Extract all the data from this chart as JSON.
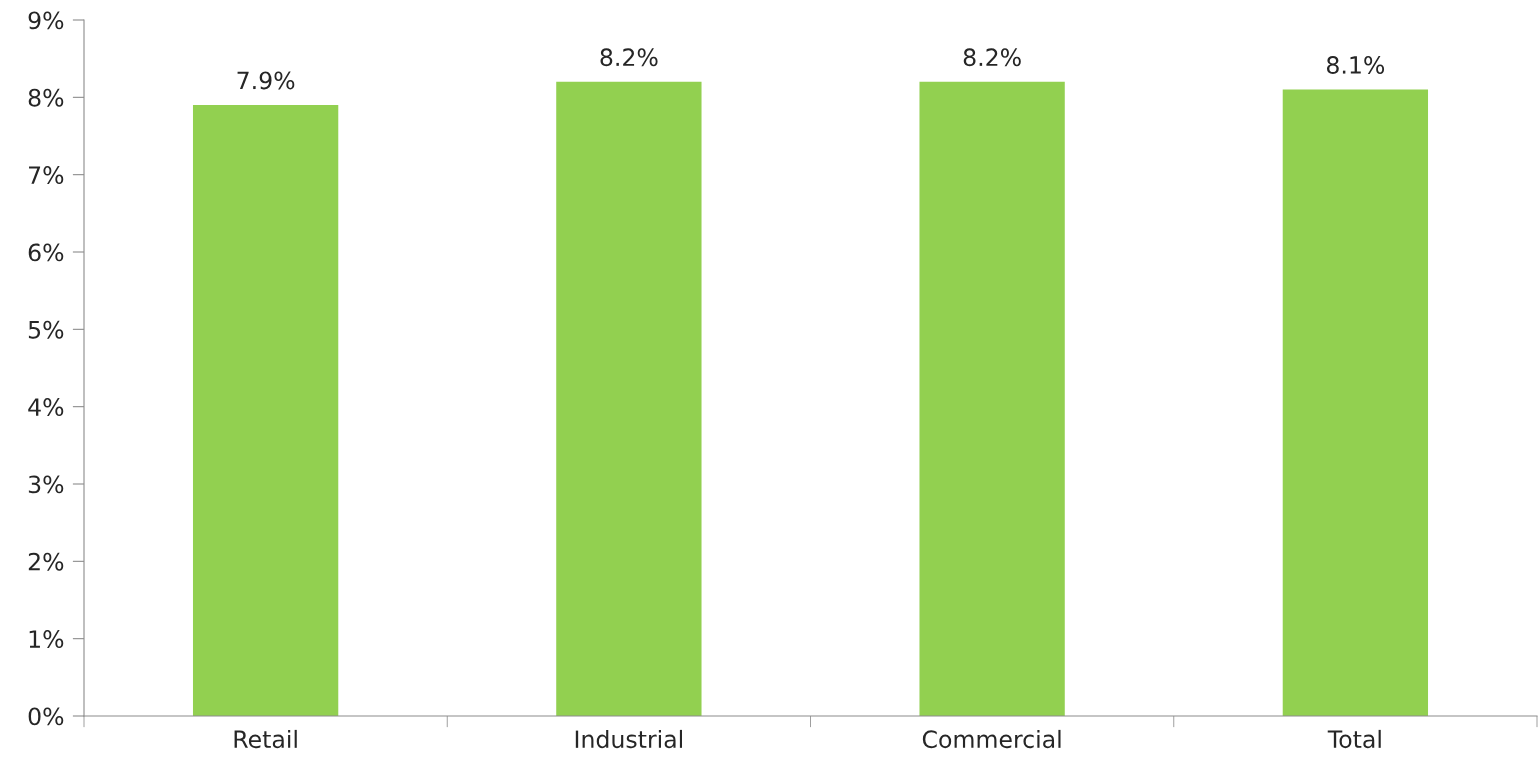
{
  "chart_data": {
    "type": "bar",
    "categories": [
      "Retail",
      "Industrial",
      "Commercial",
      "Total"
    ],
    "values": [
      7.9,
      8.2,
      8.2,
      8.1
    ],
    "value_labels": [
      "7.9%",
      "8.2%",
      "8.2%",
      "8.1%"
    ],
    "color": "#92d050",
    "ylim": [
      0,
      9
    ],
    "yticks": [
      {
        "value": 0,
        "label": "0%"
      },
      {
        "value": 1,
        "label": "1%"
      },
      {
        "value": 2,
        "label": "2%"
      },
      {
        "value": 3,
        "label": "3%"
      },
      {
        "value": 4,
        "label": "4%"
      },
      {
        "value": 5,
        "label": "5%"
      },
      {
        "value": 6,
        "label": "6%"
      },
      {
        "value": 7,
        "label": "7%"
      },
      {
        "value": 8,
        "label": "8%"
      },
      {
        "value": 9,
        "label": "9%"
      }
    ],
    "grid": false,
    "legend": false
  }
}
